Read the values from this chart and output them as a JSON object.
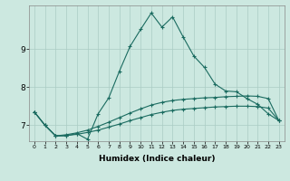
{
  "xlabel": "Humidex (Indice chaleur)",
  "bg_color": "#cce8e0",
  "grid_color": "#aaccc4",
  "line_color": "#1a6b60",
  "xlim": [
    -0.5,
    23.5
  ],
  "ylim": [
    6.58,
    10.15
  ],
  "xticks": [
    0,
    1,
    2,
    3,
    4,
    5,
    6,
    7,
    8,
    9,
    10,
    11,
    12,
    13,
    14,
    15,
    16,
    17,
    18,
    19,
    20,
    21,
    22,
    23
  ],
  "yticks": [
    7,
    8,
    9
  ],
  "series": [
    [
      7.35,
      7.0,
      6.72,
      6.72,
      6.78,
      6.63,
      7.3,
      7.72,
      8.42,
      9.07,
      9.52,
      9.95,
      9.58,
      9.85,
      9.32,
      8.82,
      8.52,
      8.08,
      7.9,
      7.88,
      7.7,
      7.55,
      7.3,
      7.12
    ],
    [
      7.35,
      7.0,
      6.72,
      6.75,
      6.8,
      6.87,
      6.97,
      7.08,
      7.2,
      7.32,
      7.43,
      7.53,
      7.6,
      7.65,
      7.68,
      7.7,
      7.72,
      7.73,
      7.75,
      7.76,
      7.77,
      7.76,
      7.7,
      7.12
    ],
    [
      7.35,
      7.0,
      6.72,
      6.73,
      6.76,
      6.81,
      6.87,
      6.95,
      7.03,
      7.12,
      7.2,
      7.28,
      7.34,
      7.39,
      7.42,
      7.44,
      7.46,
      7.48,
      7.49,
      7.5,
      7.5,
      7.49,
      7.45,
      7.12
    ]
  ]
}
